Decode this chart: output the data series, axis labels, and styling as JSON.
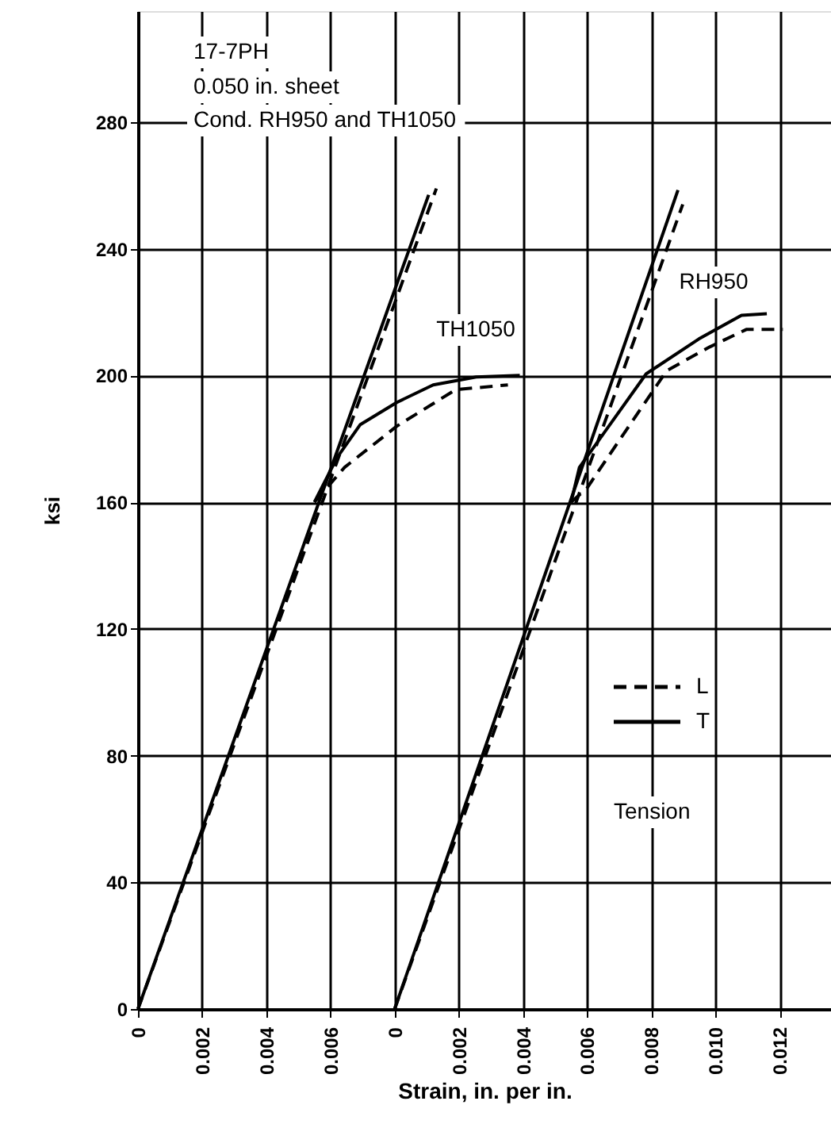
{
  "chart_data": {
    "type": "line",
    "xlabel": "Strain, in. per in.",
    "ylabel": "ksi",
    "xlim": [
      0,
      0.0216
    ],
    "ylim": [
      0,
      315
    ],
    "xticks": [
      0,
      0.002,
      0.004,
      0.006
    ],
    "x2lim": [
      -0.008,
      0.0136
    ],
    "x2ticks": [
      0,
      0.002,
      0.004,
      0.006,
      0.008,
      {
        "value": 0.01,
        "label": "0.010"
      },
      0.012
    ],
    "yticks": [
      0,
      40,
      80,
      120,
      160,
      200,
      240,
      280
    ],
    "grid": true,
    "legend": "right",
    "series": [
      {
        "name": "L",
        "color": "#000000",
        "line_style": "dashed",
        "x": [
          0,
          0.0093
        ],
        "values": [
          0,
          259
        ]
      },
      {
        "name": "T",
        "color": "#000000",
        "line_style": "solid",
        "x": [
          0,
          0.00906
        ],
        "values": [
          0,
          257
        ]
      },
      {
        "color": "#000000",
        "line_style": "dashed",
        "x": [
          0.0055,
          0.00644,
          0.00807,
          0.0099,
          0.01153
        ],
        "values": [
          160,
          171,
          184,
          195.5,
          197
        ]
      },
      {
        "color": "#000000",
        "line_style": "solid",
        "x": [
          0.0055,
          0.0062,
          0.00693,
          0.00807,
          0.0092,
          0.01054,
          0.0119
        ],
        "values": [
          160,
          174,
          184.5,
          191.5,
          197,
          199.5,
          200
        ]
      },
      {
        "color": "#000000",
        "line_style": "dashed",
        "axis": "x2",
        "x": [
          0,
          0.00898
        ],
        "values": [
          0,
          254
        ]
      },
      {
        "color": "#000000",
        "line_style": "solid",
        "axis": "x2",
        "x": [
          0,
          0.00883
        ],
        "values": [
          0,
          258.5
        ]
      },
      {
        "color": "#000000",
        "line_style": "dashed",
        "axis": "x2",
        "x": [
          0.0055,
          0.006,
          0.007,
          0.00848,
          0.00982,
          0.01096,
          0.0121
        ],
        "values": [
          160,
          164.5,
          179.5,
          201.5,
          209,
          214.5,
          214.5
        ]
      },
      {
        "color": "#000000",
        "line_style": "solid",
        "axis": "x2",
        "x": [
          0.0055,
          0.00576,
          0.00784,
          0.00948,
          0.01081,
          0.0116
        ],
        "values": [
          160,
          171,
          200.5,
          211.5,
          219,
          219.5
        ]
      }
    ],
    "annotations": [
      "17-7PH",
      "0.050 in. sheet",
      "Cond. RH950 and TH1050",
      "Tension",
      "TH1050",
      "RH950"
    ]
  }
}
